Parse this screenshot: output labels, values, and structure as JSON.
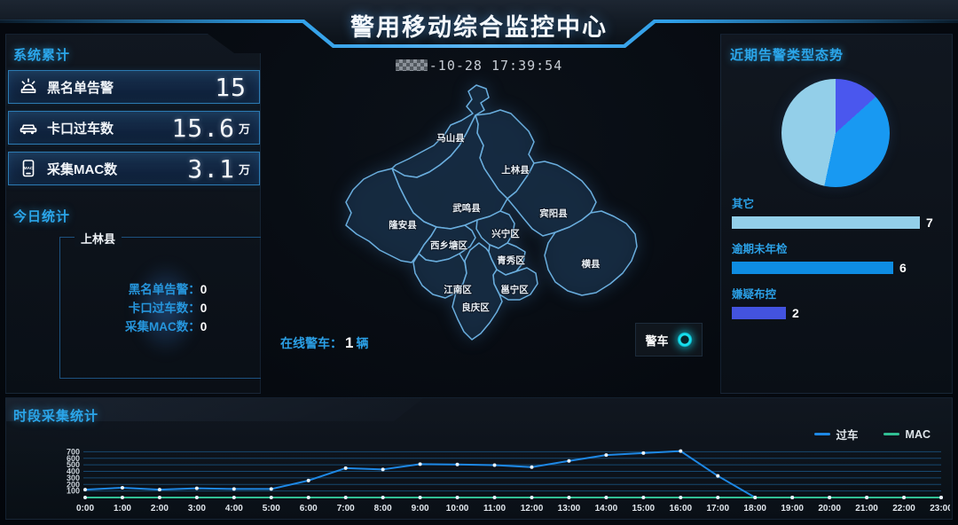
{
  "header": {
    "title": "警用移动综合监控中心",
    "datetime": "-10-28 17:39:54"
  },
  "system_panel": {
    "title": "系统累计",
    "cards": [
      {
        "icon": "siren-icon",
        "label": "黑名单告警",
        "value": "15",
        "unit": ""
      },
      {
        "icon": "car-icon",
        "label": "卡口过车数",
        "value": "15.6",
        "unit": "万"
      },
      {
        "icon": "phone-mac-icon",
        "icon_text": "MAC",
        "label": "采集MAC数",
        "value": "3.1",
        "unit": "万"
      }
    ]
  },
  "today_panel": {
    "title": "今日统计",
    "region": "上林县",
    "separator": "：",
    "rows": [
      {
        "label": "黑名单告警",
        "value": "0"
      },
      {
        "label": "卡口过车数",
        "value": "0"
      },
      {
        "label": "采集MAC数",
        "value": "0"
      }
    ]
  },
  "map": {
    "districts": [
      "马山县",
      "上林县",
      "武鸣县",
      "宾阳县",
      "隆安县",
      "西乡塘区",
      "兴宁区",
      "青秀区",
      "横县",
      "江南区",
      "邕宁区",
      "良庆区"
    ],
    "online_label": "在线警车",
    "separator": "：",
    "online_value": "1",
    "online_unit": "辆",
    "legend_label": "警车"
  },
  "alarm_panel": {
    "title": "近期告警类型态势",
    "pie_slices": [
      {
        "label": "嫌疑布控",
        "value": 2,
        "color": "#4a57ee"
      },
      {
        "label": "逾期未年检",
        "value": 6,
        "color": "#1899f2"
      },
      {
        "label": "其它",
        "value": 7,
        "color": "#93cfe9"
      }
    ],
    "bars": [
      {
        "label": "其它",
        "value": 7,
        "color": "#93cfe9"
      },
      {
        "label": "逾期未年检",
        "value": 6,
        "color": "#0e8ce2"
      },
      {
        "label": "嫌疑布控",
        "value": 2,
        "color": "#4353df"
      }
    ],
    "bar_max": 7
  },
  "chart_data": {
    "type": "line",
    "title": "时段采集统计",
    "x": [
      "0:00",
      "1:00",
      "2:00",
      "3:00",
      "4:00",
      "5:00",
      "6:00",
      "7:00",
      "8:00",
      "9:00",
      "10:00",
      "11:00",
      "12:00",
      "13:00",
      "14:00",
      "15:00",
      "16:00",
      "17:00",
      "18:00",
      "19:00",
      "20:00",
      "21:00",
      "22:00",
      "23:00"
    ],
    "yticks": [
      100,
      200,
      300,
      400,
      500,
      600,
      700
    ],
    "ylim": [
      0,
      760
    ],
    "grid": true,
    "legend_position": "top-right",
    "series": [
      {
        "name": "过车",
        "color": "#1e88e5",
        "values": [
          120,
          150,
          120,
          140,
          130,
          130,
          260,
          450,
          430,
          510,
          505,
          495,
          465,
          560,
          650,
          680,
          710,
          330,
          0,
          0,
          0,
          0,
          0,
          0
        ]
      },
      {
        "name": "MAC",
        "color": "#31bf93",
        "values": [
          0,
          0,
          0,
          0,
          0,
          0,
          0,
          0,
          0,
          0,
          0,
          0,
          0,
          0,
          0,
          0,
          0,
          0,
          0,
          0,
          0,
          0,
          0,
          0
        ]
      }
    ]
  }
}
